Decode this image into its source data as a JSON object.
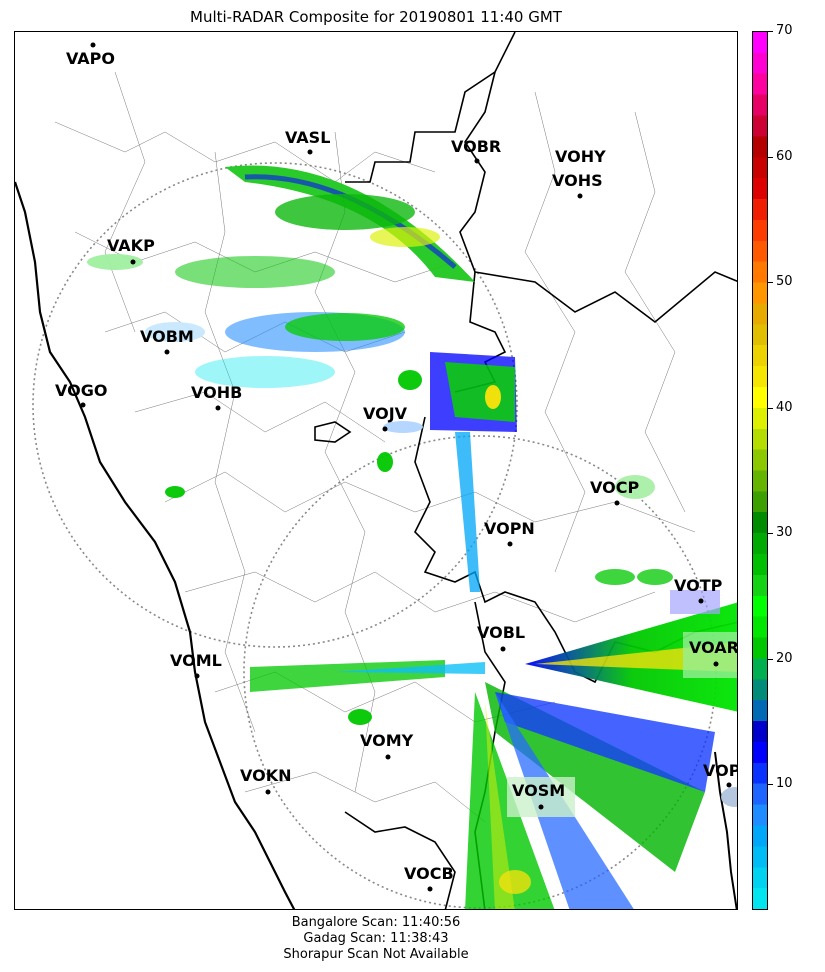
{
  "title": "Multi-RADAR Composite for 20190801 11:40 GMT",
  "stations": [
    {
      "name": "VAPO"
    },
    {
      "name": "VASL"
    },
    {
      "name": "VOBR"
    },
    {
      "name": "VOHY"
    },
    {
      "name": "VOHS"
    },
    {
      "name": "VAKP"
    },
    {
      "name": "VOBM"
    },
    {
      "name": "VOGO"
    },
    {
      "name": "VOHB"
    },
    {
      "name": "VOJV"
    },
    {
      "name": "VOCP"
    },
    {
      "name": "VOPN"
    },
    {
      "name": "VOTP"
    },
    {
      "name": "VOBL"
    },
    {
      "name": "VOAR"
    },
    {
      "name": "VOML"
    },
    {
      "name": "VOMY"
    },
    {
      "name": "VOKN"
    },
    {
      "name": "VOSM"
    },
    {
      "name": "VOPC"
    },
    {
      "name": "VOCB"
    }
  ],
  "colorbar": {
    "min": 0,
    "max": 70,
    "tick_labels": [
      "10",
      "20",
      "30",
      "40",
      "50",
      "60",
      "70"
    ],
    "colors": [
      "#00e5ee",
      "#00d2f0",
      "#00bcf5",
      "#00a6f8",
      "#1e8cff",
      "#1e64ff",
      "#0a32ff",
      "#0000ff",
      "#0000cd",
      "#006ab4",
      "#008c78",
      "#00b050",
      "#00c800",
      "#00e600",
      "#00ff00",
      "#14d214",
      "#00be00",
      "#00aa00",
      "#008c00",
      "#3ca000",
      "#64b400",
      "#8cc800",
      "#b4dc00",
      "#dcf000",
      "#ffff00",
      "#f5e600",
      "#ebd200",
      "#e1be00",
      "#e6aa00",
      "#ff9600",
      "#ff7800",
      "#ff5a00",
      "#ff3c00",
      "#f01e00",
      "#dc0000",
      "#c80000",
      "#b40000",
      "#cc0033",
      "#e60066",
      "#ff00a0",
      "#ff00d2",
      "#ff00ff"
    ]
  },
  "footer": {
    "line1": "Bangalore Scan: 11:40:56",
    "line2": "Gadag Scan: 11:38:43",
    "line3": "Shorapur Scan Not Available"
  }
}
